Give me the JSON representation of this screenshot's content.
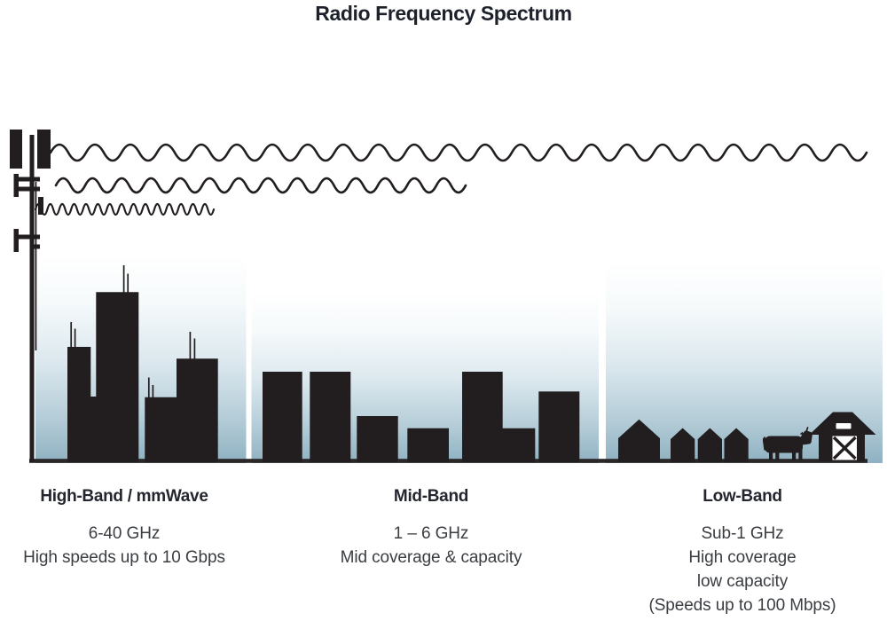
{
  "title": "Radio Frequency Spectrum",
  "bands": [
    {
      "id": "high-band",
      "name": "High-Band / mmWave",
      "lines": [
        "6-40 GHz",
        "High speeds up to 10 Gbps",
        "",
        ""
      ]
    },
    {
      "id": "mid-band",
      "name": "Mid-Band",
      "lines": [
        "1 – 6 GHz",
        "Mid coverage & capacity",
        "",
        ""
      ]
    },
    {
      "id": "low-band",
      "name": "Low-Band",
      "lines": [
        "Sub-1 GHz",
        "High coverage",
        "low capacity",
        "(Speeds up to 100 Mbps)"
      ]
    }
  ],
  "icons": {
    "cell_tower": "cell-tower-icon",
    "low_band_wave": "long-wavelength-wave-icon",
    "mid_band_wave": "medium-wavelength-wave-icon",
    "high_band_wave": "short-wavelength-wave-icon",
    "city": "city-skyline-icon",
    "midrise": "midrise-buildings-icon",
    "houses": "suburban-houses-icon",
    "cow": "cow-icon",
    "barn": "barn-icon"
  },
  "colors": {
    "ink": "#221e1f",
    "heading_text": "#23262e",
    "body_text": "#3a3d42",
    "sky_gradient_top": "#ffffff",
    "sky_gradient_bottom": "#8fb1c1",
    "ground": "#2b2728"
  }
}
